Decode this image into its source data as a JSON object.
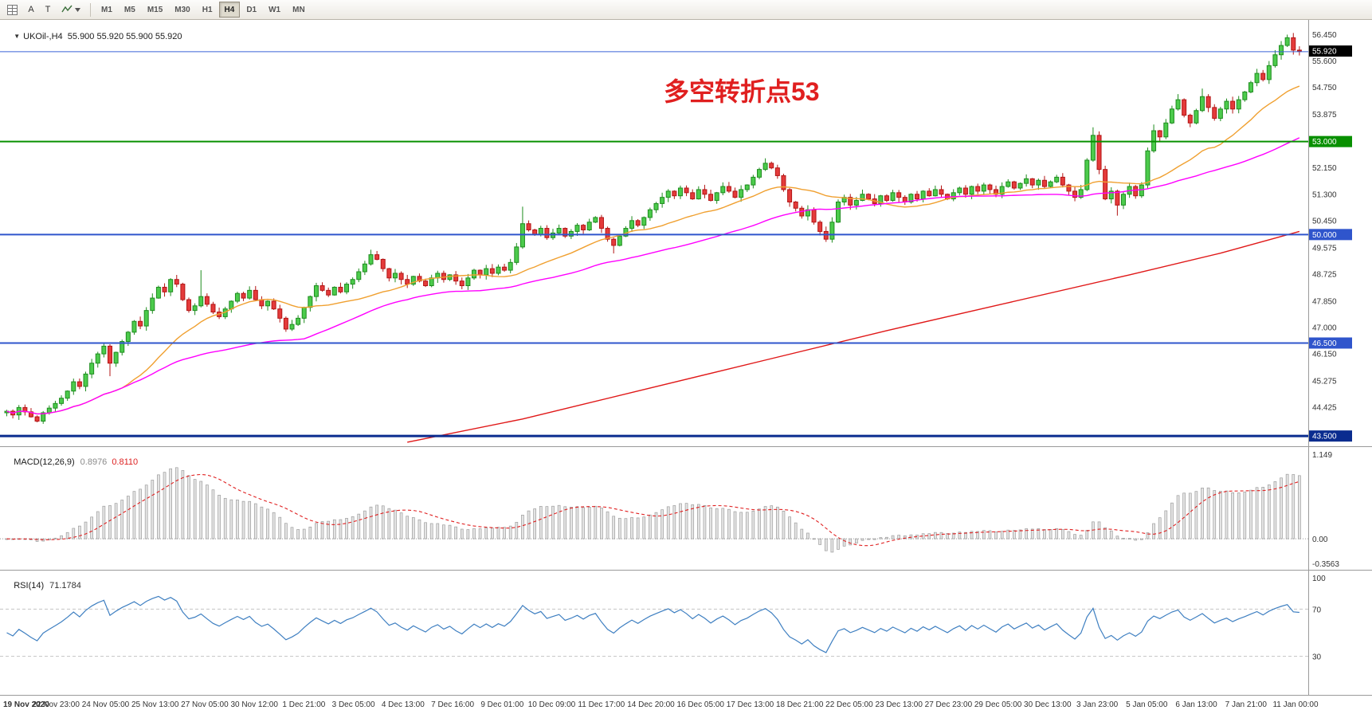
{
  "toolbar": {
    "tool_a_label": "A",
    "tool_t_label": "T",
    "timeframes": [
      "M1",
      "M5",
      "M15",
      "M30",
      "H1",
      "H4",
      "D1",
      "W1",
      "MN"
    ],
    "active_timeframe": "H4"
  },
  "chart": {
    "symbol_line": "UKOil-,H4  55.900 55.920 55.900 55.920",
    "annotation": "多空转折点53"
  },
  "chart_data": {
    "type": "candlestick",
    "title": "UKOil-,H4",
    "open_first": 44.25,
    "closes": [
      44.3,
      44.18,
      44.42,
      44.28,
      44.12,
      43.98,
      44.25,
      44.4,
      44.55,
      44.72,
      44.95,
      45.25,
      45.1,
      45.5,
      45.85,
      46.15,
      46.4,
      45.85,
      46.2,
      46.55,
      46.85,
      47.2,
      47.05,
      47.55,
      47.95,
      48.3,
      48.15,
      48.55,
      48.4,
      47.9,
      47.55,
      47.7,
      48.0,
      47.75,
      47.5,
      47.35,
      47.6,
      47.85,
      48.1,
      47.95,
      48.2,
      47.9,
      47.7,
      47.85,
      47.6,
      47.3,
      46.95,
      47.1,
      47.3,
      47.65,
      48.0,
      48.35,
      48.2,
      48.05,
      48.3,
      48.15,
      48.4,
      48.55,
      48.8,
      49.05,
      49.35,
      49.2,
      48.9,
      48.6,
      48.75,
      48.55,
      48.4,
      48.65,
      48.5,
      48.35,
      48.6,
      48.75,
      48.55,
      48.7,
      48.5,
      48.35,
      48.6,
      48.85,
      48.7,
      48.9,
      48.75,
      48.95,
      48.85,
      49.1,
      49.6,
      50.35,
      50.15,
      50.0,
      50.2,
      49.9,
      50.05,
      50.2,
      49.95,
      50.1,
      50.3,
      50.15,
      50.4,
      50.55,
      50.2,
      49.85,
      49.65,
      49.95,
      50.2,
      50.45,
      50.3,
      50.55,
      50.8,
      51.0,
      51.2,
      51.4,
      51.25,
      51.5,
      51.35,
      51.15,
      51.45,
      51.3,
      51.1,
      51.35,
      51.55,
      51.4,
      51.2,
      51.45,
      51.6,
      51.85,
      52.1,
      52.3,
      52.15,
      51.9,
      51.45,
      51.05,
      50.85,
      50.6,
      50.8,
      50.4,
      50.1,
      49.85,
      50.4,
      51.05,
      51.2,
      50.95,
      51.1,
      51.3,
      51.15,
      51.0,
      51.25,
      51.1,
      51.35,
      51.2,
      51.05,
      51.3,
      51.15,
      51.4,
      51.25,
      51.45,
      51.3,
      51.15,
      51.35,
      51.5,
      51.3,
      51.55,
      51.4,
      51.6,
      51.45,
      51.3,
      51.55,
      51.7,
      51.5,
      51.65,
      51.8,
      51.6,
      51.75,
      51.55,
      51.7,
      51.85,
      51.6,
      51.4,
      51.2,
      51.45,
      52.4,
      53.2,
      52.1,
      51.15,
      51.4,
      50.95,
      51.3,
      51.55,
      51.25,
      51.6,
      52.7,
      53.35,
      53.15,
      53.6,
      54.05,
      54.35,
      53.85,
      53.6,
      54.0,
      54.45,
      54.1,
      53.75,
      54.05,
      54.3,
      54.05,
      54.35,
      54.6,
      54.9,
      55.2,
      55.0,
      55.45,
      55.8,
      56.1,
      56.35,
      55.95,
      55.92
    ],
    "wick_overrides": {
      "17": [
        0.06,
        0.42
      ],
      "32": [
        0.85,
        0.05
      ],
      "60": [
        0.16,
        0.05
      ],
      "85": [
        0.55,
        0.06
      ],
      "100": [
        0.05,
        0.26
      ],
      "125": [
        0.16,
        0.05
      ],
      "179": [
        0.26,
        0.05
      ],
      "183": [
        0.05,
        0.34
      ],
      "189": [
        0.2,
        0.06
      ],
      "193": [
        0.18,
        0.05
      ],
      "197": [
        0.26,
        0.05
      ],
      "211": [
        0.1,
        0.05
      ]
    },
    "price_range": {
      "min": 43.17,
      "max": 56.95
    },
    "price_axis_labels": [
      "56.450",
      "55.600",
      "54.750",
      "53.875",
      "52.150",
      "51.300",
      "50.450",
      "49.575",
      "48.725",
      "47.850",
      "47.000",
      "46.150",
      "45.275",
      "44.425"
    ],
    "badges": [
      {
        "text": "55.920",
        "price": 55.92,
        "bg": "#000000"
      },
      {
        "text": "53.000",
        "price": 53.0,
        "bg": "#089000"
      },
      {
        "text": "50.000",
        "price": 50.0,
        "bg": "#2f55cc"
      },
      {
        "text": "46.500",
        "price": 46.5,
        "bg": "#2f55cc"
      },
      {
        "text": "43.500",
        "price": 43.5,
        "bg": "#0a2c8f"
      }
    ],
    "hlines": [
      {
        "price": 55.9,
        "color": "#3b64d8",
        "width": 1
      },
      {
        "price": 53.0,
        "color": "#089000",
        "width": 2
      },
      {
        "price": 50.0,
        "color": "#2f55cc",
        "width": 2
      },
      {
        "price": 46.5,
        "color": "#2f55cc",
        "width": 2
      },
      {
        "price": 43.5,
        "color": "#0a2c8f",
        "width": 3
      }
    ],
    "ma": {
      "fast_period": 20,
      "fast_color": "#f0a030",
      "mid_period": 50,
      "mid_color": "#ff00ff",
      "slow_color": "#e01818",
      "slow_points": [
        [
          66,
          43.3
        ],
        [
          85,
          44.05
        ],
        [
          105,
          45.0
        ],
        [
          125,
          45.95
        ],
        [
          145,
          46.9
        ],
        [
          165,
          47.8
        ],
        [
          185,
          48.7
        ],
        [
          200,
          49.4
        ],
        [
          213,
          50.1
        ]
      ]
    },
    "macd": {
      "label": "MACD(12,26,9)",
      "main_value": "0.8976",
      "signal_value": "0.8110",
      "axis": [
        "1.149",
        "0.00",
        "-0.3563"
      ],
      "max": 1.149,
      "min": -0.3563
    },
    "rsi": {
      "label": "RSI(14)",
      "value": "71.1784",
      "levels": [
        70,
        30
      ],
      "axis": [
        "100",
        "70",
        "30"
      ]
    },
    "x_labels": [
      "19 Nov 2020",
      "22 Nov 23:00",
      "24 Nov 05:00",
      "25 Nov 13:00",
      "27 Nov 05:00",
      "30 Nov 12:00",
      "1 Dec 21:00",
      "3 Dec 05:00",
      "4 Dec 13:00",
      "7 Dec 16:00",
      "9 Dec 01:00",
      "10 Dec 09:00",
      "11 Dec 17:00",
      "14 Dec 20:00",
      "16 Dec 05:00",
      "17 Dec 13:00",
      "18 Dec 21:00",
      "22 Dec 05:00",
      "23 Dec 13:00",
      "27 Dec 23:00",
      "29 Dec 05:00",
      "30 Dec 13:00",
      "3 Jan 23:00",
      "5 Jan 05:00",
      "6 Jan 13:00",
      "7 Jan 21:00",
      "11 Jan 00:00"
    ]
  }
}
